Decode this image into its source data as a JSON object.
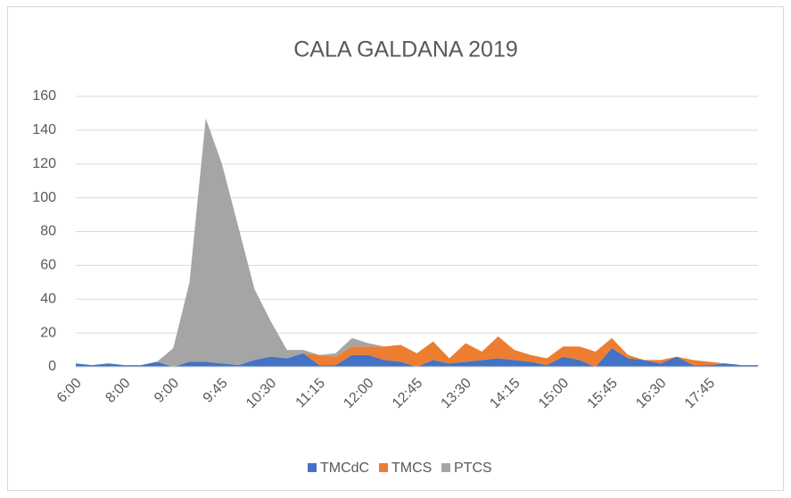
{
  "chart_data": {
    "type": "stacked_area",
    "title": "CALA GALDANA 2019",
    "categories": [
      "6:00",
      null,
      null,
      "8:00",
      null,
      null,
      "9:00",
      null,
      null,
      "9:45",
      null,
      null,
      "10:30",
      null,
      null,
      "11:15",
      null,
      null,
      "12:00",
      null,
      null,
      "12:45",
      null,
      null,
      "13:30",
      null,
      null,
      "14:15",
      null,
      null,
      "15:00",
      null,
      null,
      "15:45",
      null,
      null,
      "16:30",
      null,
      null,
      "17:45",
      null,
      null,
      null
    ],
    "series": [
      {
        "name": "TMCdC",
        "color": "#4472c4",
        "values": [
          2,
          1,
          2,
          1,
          1,
          3,
          0,
          3,
          3,
          2,
          1,
          4,
          6,
          5,
          8,
          1,
          1,
          7,
          7,
          4,
          3,
          0,
          4,
          2,
          3,
          4,
          5,
          4,
          3,
          1,
          6,
          4,
          0,
          11,
          5,
          4,
          2,
          6,
          1,
          1,
          2,
          1,
          1
        ]
      },
      {
        "name": "TMCS",
        "color": "#ed7d31",
        "values": [
          0,
          0,
          0,
          0,
          0,
          0,
          0,
          0,
          0,
          0,
          0,
          0,
          0,
          0,
          0,
          6,
          5,
          5,
          5,
          8,
          10,
          8,
          11,
          3,
          11,
          5,
          13,
          6,
          4,
          4,
          6,
          8,
          9,
          6,
          2,
          0,
          2,
          0,
          3,
          2,
          0,
          0,
          0
        ]
      },
      {
        "name": "PTCS",
        "color": "#a5a5a5",
        "values": [
          0,
          0,
          0,
          0,
          0,
          0,
          11,
          47,
          144,
          118,
          82,
          42,
          21,
          5,
          2,
          0,
          2,
          5,
          2,
          0,
          0,
          0,
          0,
          0,
          0,
          0,
          0,
          0,
          0,
          0,
          0,
          0,
          0,
          0,
          0,
          0,
          0,
          0,
          0,
          0,
          0,
          0,
          0
        ]
      }
    ],
    "ylim": [
      0,
      160
    ],
    "yticks": [
      0,
      20,
      40,
      60,
      80,
      100,
      120,
      140,
      160
    ],
    "grid": true,
    "legend": "bottom"
  }
}
